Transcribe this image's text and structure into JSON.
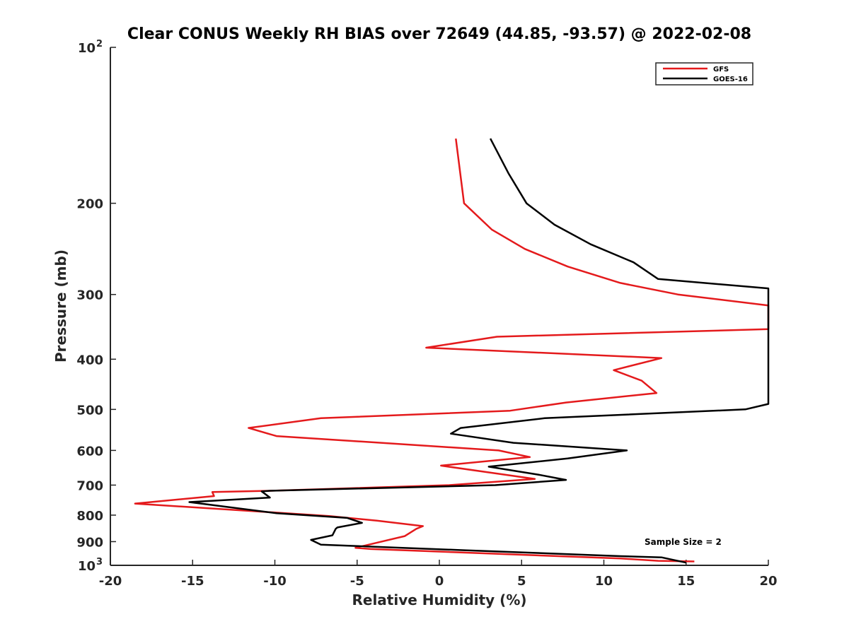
{
  "chart_data": {
    "type": "line",
    "title": "Clear CONUS Weekly RH BIAS over 72649 (44.85, -93.57) @ 2022-02-08",
    "xlabel": "Relative Humidity (%)",
    "ylabel": "Pressure (mb)",
    "xlim": [
      -20,
      20
    ],
    "ylim": [
      100,
      1000
    ],
    "y_scale": "log",
    "y_reversed": true,
    "grid": false,
    "legend_placement": "top-right",
    "x_ticks": [
      {
        "value": -20,
        "label": "-20"
      },
      {
        "value": -15,
        "label": "-15"
      },
      {
        "value": -10,
        "label": "-10"
      },
      {
        "value": -5,
        "label": "-5"
      },
      {
        "value": 0,
        "label": "0"
      },
      {
        "value": 5,
        "label": "5"
      },
      {
        "value": 10,
        "label": "10"
      },
      {
        "value": 15,
        "label": "15"
      },
      {
        "value": 20,
        "label": "20"
      }
    ],
    "y_ticks": [
      {
        "value": 100,
        "base": "10",
        "exp": "2"
      },
      {
        "value": 200,
        "label": "200"
      },
      {
        "value": 300,
        "label": "300"
      },
      {
        "value": 400,
        "label": "400"
      },
      {
        "value": 500,
        "label": "500"
      },
      {
        "value": 600,
        "label": "600"
      },
      {
        "value": 700,
        "label": "700"
      },
      {
        "value": 800,
        "label": "800"
      },
      {
        "value": 900,
        "label": "900"
      },
      {
        "value": 1000,
        "base": "10",
        "exp": "3"
      }
    ],
    "annotation": "Sample Size = 2",
    "series": [
      {
        "name": "GFS",
        "color": "#e41a1c",
        "points": [
          [
            1.0,
            150
          ],
          [
            1.5,
            200
          ],
          [
            3.2,
            225
          ],
          [
            5.2,
            245
          ],
          [
            7.8,
            265
          ],
          [
            11.0,
            285
          ],
          [
            14.5,
            300
          ],
          [
            20,
            315
          ],
          [
            20,
            350
          ],
          [
            3.5,
            362
          ],
          [
            -0.8,
            380
          ],
          [
            13.5,
            398
          ],
          [
            10.6,
            420
          ],
          [
            12.3,
            440
          ],
          [
            13.2,
            465
          ],
          [
            7.7,
            485
          ],
          [
            4.3,
            503
          ],
          [
            -7.2,
            520
          ],
          [
            -11.6,
            543
          ],
          [
            -9.9,
            563
          ],
          [
            3.6,
            600
          ],
          [
            5.5,
            618
          ],
          [
            0.1,
            642
          ],
          [
            3.5,
            665
          ],
          [
            5.8,
            681
          ],
          [
            0.6,
            700
          ],
          [
            -10.3,
            718
          ],
          [
            -13.8,
            722
          ],
          [
            -13.7,
            735
          ],
          [
            -18.5,
            760
          ],
          [
            -6.7,
            803
          ],
          [
            -3.8,
            820
          ],
          [
            -1.0,
            840
          ],
          [
            -1.4,
            850
          ],
          [
            -2.1,
            878
          ],
          [
            -5.1,
            925
          ],
          [
            -4.2,
            930
          ],
          [
            11.0,
            970
          ],
          [
            13.3,
            980
          ],
          [
            15.5,
            983
          ]
        ]
      },
      {
        "name": "GOES-16",
        "color": "#000000",
        "points": [
          [
            3.1,
            150
          ],
          [
            4.2,
            175
          ],
          [
            5.3,
            200
          ],
          [
            7.0,
            220
          ],
          [
            9.2,
            240
          ],
          [
            11.8,
            260
          ],
          [
            13.3,
            280
          ],
          [
            20,
            292
          ],
          [
            20,
            488
          ],
          [
            18.6,
            500
          ],
          [
            6.4,
            520
          ],
          [
            1.3,
            543
          ],
          [
            0.7,
            557
          ],
          [
            4.5,
            580
          ],
          [
            11.4,
            600
          ],
          [
            7.8,
            622
          ],
          [
            3.0,
            645
          ],
          [
            6.0,
            668
          ],
          [
            7.7,
            684
          ],
          [
            3.4,
            700
          ],
          [
            -10.3,
            718
          ],
          [
            -10.8,
            720
          ],
          [
            -10.3,
            740
          ],
          [
            -15.2,
            755
          ],
          [
            -9.9,
            793
          ],
          [
            -5.6,
            810
          ],
          [
            -4.7,
            828
          ],
          [
            -6.2,
            845
          ],
          [
            -6.3,
            850
          ],
          [
            -6.5,
            875
          ],
          [
            -7.8,
            893
          ],
          [
            -7.2,
            912
          ],
          [
            1.5,
            935
          ],
          [
            11.0,
            960
          ],
          [
            13.5,
            965
          ],
          [
            15.0,
            988
          ]
        ]
      }
    ]
  }
}
